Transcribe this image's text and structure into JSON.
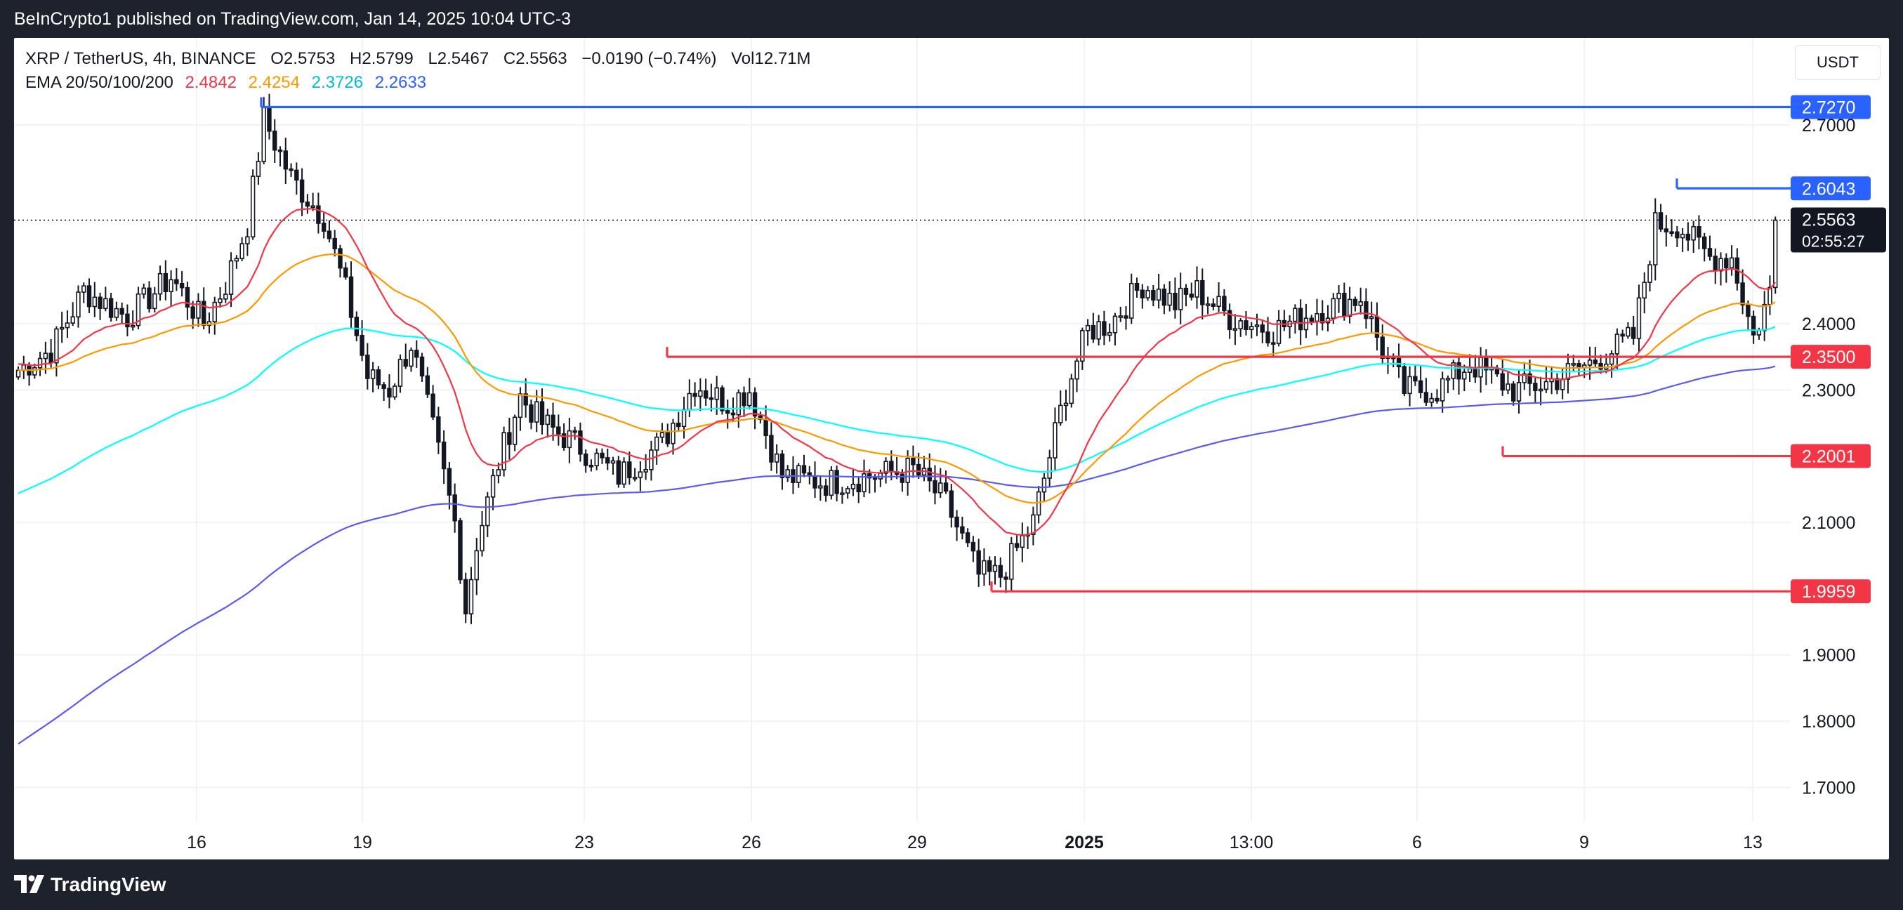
{
  "header": {
    "publisher_line": "BeInCrypto1 published on TradingView.com, Jan 14, 2025 10:04 UTC-3"
  },
  "legend": {
    "symbol": "XRP / TetherUS, 4h, BINANCE",
    "open": "O2.5753",
    "high": "H2.5799",
    "low": "L2.5467",
    "close": "C2.5563",
    "change": "−0.0190 (−0.74%)",
    "volume": "Vol12.71M",
    "ema_label": "EMA 20/50/100/200",
    "ema20": "2.4842",
    "ema50": "2.4254",
    "ema100": "2.3726",
    "ema200": "2.2633"
  },
  "currency_button": "USDT",
  "footer": {
    "brand": "TradingView"
  },
  "colors": {
    "ema20": "#f23645",
    "ema50": "#ff9800",
    "ema100": "#00ffff",
    "ema200": "#5b5bf0",
    "resistance": "#2962ff",
    "support": "#f23645",
    "candle": "#131722"
  },
  "chart_data": {
    "type": "candlestick",
    "title": "",
    "ylim": [
      1.64,
      2.78
    ],
    "price_scale_ticks": [
      "2.7000",
      "2.4000",
      "2.3000",
      "2.1000",
      "1.9000",
      "1.8000",
      "1.7000"
    ],
    "time_axis_labels": [
      {
        "label": "16",
        "bold": false
      },
      {
        "label": "19",
        "bold": false
      },
      {
        "label": "23",
        "bold": false
      },
      {
        "label": "26",
        "bold": false
      },
      {
        "label": "29",
        "bold": false
      },
      {
        "label": "2025",
        "bold": true
      },
      {
        "label": "13:00",
        "bold": false
      },
      {
        "label": "6",
        "bold": false
      },
      {
        "label": "9",
        "bold": false
      },
      {
        "label": "13",
        "bold": false
      }
    ],
    "current_price": {
      "value": 2.5563,
      "label": "2.5563",
      "countdown": "02:55:27"
    },
    "levels": [
      {
        "name": "resistance-2.7270",
        "value": 2.727,
        "label": "2.7270",
        "kind": "resistance",
        "from": "Dec 17"
      },
      {
        "name": "resistance-2.6043",
        "value": 2.6043,
        "label": "2.6043",
        "kind": "resistance",
        "from": "Jan 12"
      },
      {
        "name": "support-2.3500",
        "value": 2.35,
        "label": "2.3500",
        "kind": "support",
        "from": "Dec 24"
      },
      {
        "name": "support-2.2001",
        "value": 2.2001,
        "label": "2.2001",
        "kind": "support",
        "from": "Jan 8"
      },
      {
        "name": "support-1.9959",
        "value": 1.9959,
        "label": "1.9959",
        "kind": "support",
        "from": "Dec 30"
      }
    ],
    "price_path": [
      [
        0,
        2.33
      ],
      [
        6,
        2.36
      ],
      [
        12,
        2.45
      ],
      [
        20,
        2.41
      ],
      [
        28,
        2.47
      ],
      [
        34,
        2.4
      ],
      [
        38,
        2.46
      ],
      [
        42,
        2.55
      ],
      [
        45,
        2.71
      ],
      [
        50,
        2.62
      ],
      [
        56,
        2.56
      ],
      [
        60,
        2.45
      ],
      [
        64,
        2.32
      ],
      [
        68,
        2.3
      ],
      [
        72,
        2.37
      ],
      [
        76,
        2.24
      ],
      [
        80,
        2.1
      ],
      [
        82,
        1.97
      ],
      [
        84,
        2.07
      ],
      [
        88,
        2.19
      ],
      [
        92,
        2.29
      ],
      [
        96,
        2.25
      ],
      [
        102,
        2.22
      ],
      [
        110,
        2.17
      ],
      [
        118,
        2.22
      ],
      [
        124,
        2.31
      ],
      [
        130,
        2.28
      ],
      [
        134,
        2.3
      ],
      [
        140,
        2.17
      ],
      [
        148,
        2.16
      ],
      [
        156,
        2.17
      ],
      [
        164,
        2.18
      ],
      [
        170,
        2.13
      ],
      [
        176,
        2.02
      ],
      [
        180,
        2.02
      ],
      [
        186,
        2.1
      ],
      [
        192,
        2.3
      ],
      [
        196,
        2.39
      ],
      [
        200,
        2.4
      ],
      [
        206,
        2.46
      ],
      [
        212,
        2.43
      ],
      [
        216,
        2.45
      ],
      [
        222,
        2.41
      ],
      [
        230,
        2.39
      ],
      [
        238,
        2.42
      ],
      [
        246,
        2.44
      ],
      [
        250,
        2.36
      ],
      [
        254,
        2.3
      ],
      [
        260,
        2.3
      ],
      [
        266,
        2.34
      ],
      [
        274,
        2.3
      ],
      [
        280,
        2.31
      ],
      [
        288,
        2.34
      ],
      [
        296,
        2.38
      ],
      [
        300,
        2.55
      ],
      [
        304,
        2.55
      ],
      [
        310,
        2.5
      ],
      [
        314,
        2.5
      ],
      [
        318,
        2.38
      ],
      [
        322,
        2.47
      ]
    ],
    "ema_start_values": {
      "ema20": 2.34,
      "ema50": 2.33,
      "ema100": 2.14,
      "ema200": 1.76
    }
  }
}
